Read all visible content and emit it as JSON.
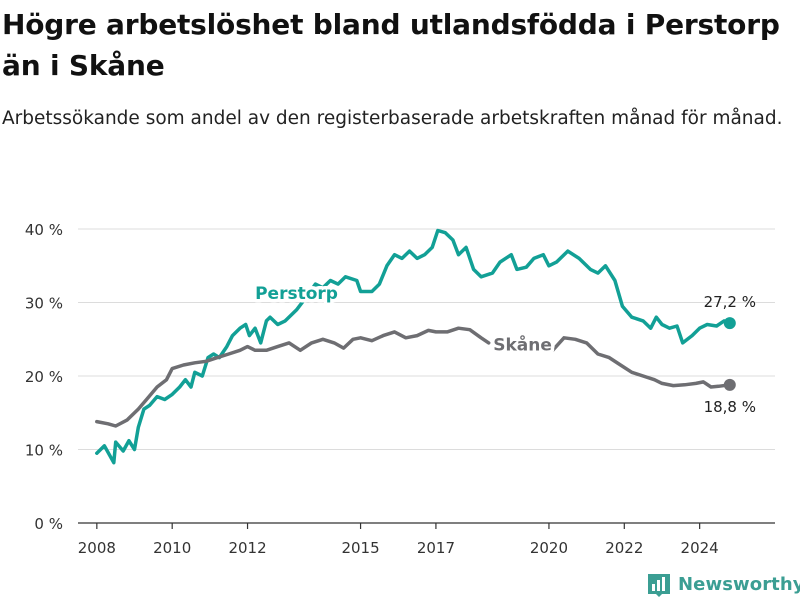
{
  "title": "Högre arbetslöshet bland utlandsfödda i Perstorp än i Skåne",
  "subtitle": "Arbetssökande som andel av den registerbaserade arbetskraften månad för månad.",
  "brand": "Newsworthy",
  "colors": {
    "perstorp": "#12a096",
    "skane": "#6e6e72",
    "grid": "#dcdcdc",
    "axis": "#333333",
    "text": "#333333"
  },
  "chart_data": {
    "type": "line",
    "title": "Högre arbetslöshet bland utlandsfödda i Perstorp än i Skåne",
    "xlabel": "",
    "ylabel": "",
    "xlim": [
      2007.5,
      2026.0
    ],
    "ylim": [
      0,
      40
    ],
    "yticks": [
      0,
      10,
      20,
      30,
      40
    ],
    "ytick_labels": [
      "0 %",
      "10 %",
      "20 %",
      "30 %",
      "40 %"
    ],
    "xticks": [
      2008,
      2010,
      2012,
      2015,
      2017,
      2020,
      2022,
      2024
    ],
    "xtick_labels": [
      "2008",
      "2010",
      "2012",
      "2015",
      "2017",
      "2020",
      "2022",
      "2024"
    ],
    "grid": true,
    "series": [
      {
        "name": "Perstorp",
        "color_key": "perstorp",
        "end_label": "27,2 %",
        "points": [
          [
            2008.0,
            9.5
          ],
          [
            2008.2,
            10.5
          ],
          [
            2008.45,
            8.2
          ],
          [
            2008.5,
            11.0
          ],
          [
            2008.7,
            9.8
          ],
          [
            2008.85,
            11.2
          ],
          [
            2009.0,
            10.0
          ],
          [
            2009.1,
            13.0
          ],
          [
            2009.25,
            15.5
          ],
          [
            2009.4,
            16.0
          ],
          [
            2009.6,
            17.2
          ],
          [
            2009.8,
            16.8
          ],
          [
            2010.0,
            17.5
          ],
          [
            2010.2,
            18.5
          ],
          [
            2010.35,
            19.5
          ],
          [
            2010.5,
            18.5
          ],
          [
            2010.6,
            20.5
          ],
          [
            2010.8,
            20.0
          ],
          [
            2010.95,
            22.5
          ],
          [
            2011.1,
            23.0
          ],
          [
            2011.25,
            22.5
          ],
          [
            2011.45,
            24.0
          ],
          [
            2011.6,
            25.5
          ],
          [
            2011.8,
            26.5
          ],
          [
            2011.95,
            27.0
          ],
          [
            2012.05,
            25.5
          ],
          [
            2012.2,
            26.5
          ],
          [
            2012.35,
            24.5
          ],
          [
            2012.5,
            27.5
          ],
          [
            2012.6,
            28.0
          ],
          [
            2012.8,
            27.0
          ],
          [
            2013.0,
            27.5
          ],
          [
            2013.3,
            29.0
          ],
          [
            2013.6,
            31.0
          ],
          [
            2013.8,
            32.5
          ],
          [
            2014.0,
            32.0
          ],
          [
            2014.2,
            33.0
          ],
          [
            2014.4,
            32.5
          ],
          [
            2014.6,
            33.5
          ],
          [
            2014.9,
            33.0
          ],
          [
            2015.0,
            31.5
          ],
          [
            2015.3,
            31.5
          ],
          [
            2015.5,
            32.5
          ],
          [
            2015.7,
            35.0
          ],
          [
            2015.9,
            36.5
          ],
          [
            2016.1,
            36.0
          ],
          [
            2016.3,
            37.0
          ],
          [
            2016.5,
            36.0
          ],
          [
            2016.7,
            36.5
          ],
          [
            2016.9,
            37.5
          ],
          [
            2017.05,
            39.8
          ],
          [
            2017.25,
            39.5
          ],
          [
            2017.45,
            38.5
          ],
          [
            2017.6,
            36.5
          ],
          [
            2017.8,
            37.5
          ],
          [
            2018.0,
            34.5
          ],
          [
            2018.2,
            33.5
          ],
          [
            2018.5,
            34.0
          ],
          [
            2018.7,
            35.5
          ],
          [
            2019.0,
            36.5
          ],
          [
            2019.15,
            34.5
          ],
          [
            2019.4,
            34.8
          ],
          [
            2019.6,
            36.0
          ],
          [
            2019.85,
            36.5
          ],
          [
            2020.0,
            35.0
          ],
          [
            2020.2,
            35.5
          ],
          [
            2020.5,
            37.0
          ],
          [
            2020.8,
            36.0
          ],
          [
            2021.1,
            34.5
          ],
          [
            2021.3,
            34.0
          ],
          [
            2021.5,
            35.0
          ],
          [
            2021.75,
            33.0
          ],
          [
            2021.95,
            29.5
          ],
          [
            2022.2,
            28.0
          ],
          [
            2022.5,
            27.5
          ],
          [
            2022.7,
            26.5
          ],
          [
            2022.85,
            28.0
          ],
          [
            2023.0,
            27.0
          ],
          [
            2023.2,
            26.5
          ],
          [
            2023.4,
            26.8
          ],
          [
            2023.55,
            24.5
          ],
          [
            2023.8,
            25.5
          ],
          [
            2024.0,
            26.5
          ],
          [
            2024.2,
            27.0
          ],
          [
            2024.45,
            26.8
          ],
          [
            2024.65,
            27.5
          ],
          [
            2024.8,
            27.2
          ]
        ]
      },
      {
        "name": "Skåne",
        "color_key": "skane",
        "end_label": "18,8 %",
        "points": [
          [
            2008.0,
            13.8
          ],
          [
            2008.3,
            13.5
          ],
          [
            2008.5,
            13.2
          ],
          [
            2008.8,
            14.0
          ],
          [
            2009.1,
            15.5
          ],
          [
            2009.35,
            17.0
          ],
          [
            2009.6,
            18.5
          ],
          [
            2009.85,
            19.5
          ],
          [
            2010.0,
            21.0
          ],
          [
            2010.3,
            21.5
          ],
          [
            2010.6,
            21.8
          ],
          [
            2010.9,
            22.0
          ],
          [
            2011.2,
            22.5
          ],
          [
            2011.5,
            23.0
          ],
          [
            2011.8,
            23.5
          ],
          [
            2012.0,
            24.0
          ],
          [
            2012.2,
            23.5
          ],
          [
            2012.5,
            23.5
          ],
          [
            2012.8,
            24.0
          ],
          [
            2013.1,
            24.5
          ],
          [
            2013.4,
            23.5
          ],
          [
            2013.7,
            24.5
          ],
          [
            2014.0,
            25.0
          ],
          [
            2014.3,
            24.5
          ],
          [
            2014.55,
            23.8
          ],
          [
            2014.8,
            25.0
          ],
          [
            2015.0,
            25.2
          ],
          [
            2015.3,
            24.8
          ],
          [
            2015.6,
            25.5
          ],
          [
            2015.9,
            26.0
          ],
          [
            2016.2,
            25.2
          ],
          [
            2016.5,
            25.5
          ],
          [
            2016.8,
            26.2
          ],
          [
            2017.0,
            26.0
          ],
          [
            2017.3,
            26.0
          ],
          [
            2017.6,
            26.5
          ],
          [
            2017.9,
            26.3
          ],
          [
            2018.2,
            25.2
          ],
          [
            2018.4,
            24.5
          ],
          [
            2020.1,
            23.5
          ],
          [
            2020.4,
            25.2
          ],
          [
            2020.7,
            25.0
          ],
          [
            2021.0,
            24.5
          ],
          [
            2021.3,
            23.0
          ],
          [
            2021.6,
            22.5
          ],
          [
            2021.9,
            21.5
          ],
          [
            2022.2,
            20.5
          ],
          [
            2022.5,
            20.0
          ],
          [
            2022.8,
            19.5
          ],
          [
            2023.0,
            19.0
          ],
          [
            2023.3,
            18.7
          ],
          [
            2023.6,
            18.8
          ],
          [
            2023.9,
            19.0
          ],
          [
            2024.1,
            19.2
          ],
          [
            2024.3,
            18.5
          ],
          [
            2024.5,
            18.6
          ],
          [
            2024.8,
            18.8
          ]
        ]
      }
    ],
    "annotations": [
      {
        "text": "Perstorp",
        "series": "Perstorp",
        "at": [
          2013.3,
          30.5
        ]
      },
      {
        "text": "Skåne",
        "series": "Skåne",
        "at": [
          2019.3,
          23.5
        ]
      }
    ]
  }
}
